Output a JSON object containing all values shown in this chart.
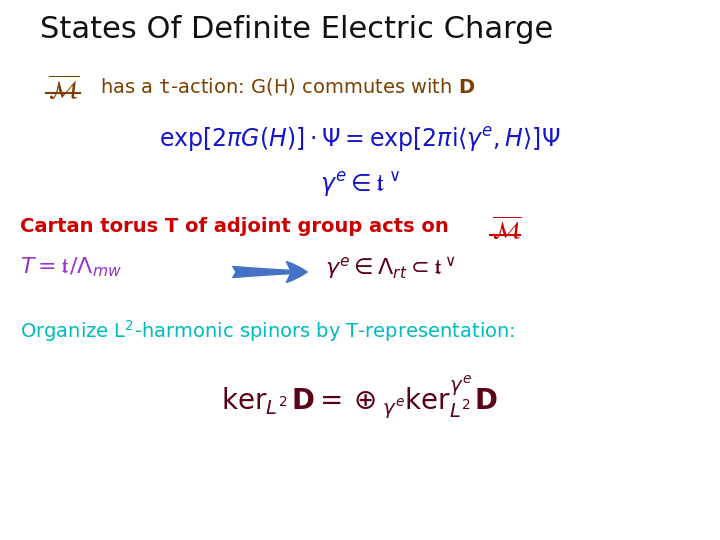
{
  "title": "States Of Definite Electric Charge",
  "title_fontsize": 22,
  "title_color": "#111111",
  "bg_color": "#ffffff",
  "line1_math_color": "#7B3F00",
  "line1_text_color": "#7B3F00",
  "line2_color": "#1515CC",
  "line3_color": "#1515CC",
  "line4_color": "#CC0000",
  "line5_left_color": "#9933CC",
  "line5_right_color": "#5C0015",
  "arrow_color": "#4472C4",
  "line6_color": "#00BBBB",
  "line7_color": "#5C0015"
}
